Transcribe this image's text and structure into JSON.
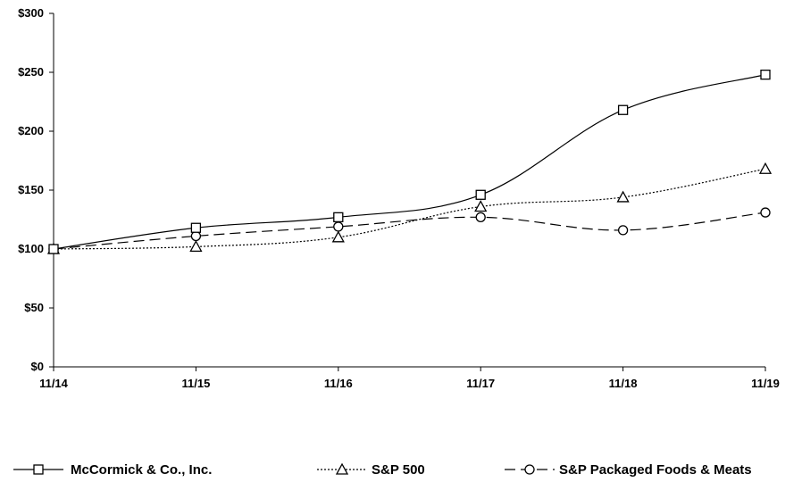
{
  "chart_data": {
    "type": "line",
    "title": "",
    "xlabel": "",
    "ylabel": "",
    "categories": [
      "11/14",
      "11/15",
      "11/16",
      "11/17",
      "11/18",
      "11/19"
    ],
    "y_tick_labels": [
      "$0",
      "$50",
      "$100",
      "$150",
      "$200",
      "$250",
      "$300"
    ],
    "y_ticks": [
      0,
      50,
      100,
      150,
      200,
      250,
      300
    ],
    "ylim": [
      0,
      300
    ],
    "grid": false,
    "legend_position": "bottom",
    "series": [
      {
        "name": "McCormick & Co., Inc.",
        "values": [
          100,
          118,
          127,
          146,
          218,
          248
        ],
        "marker": "square",
        "dash": "solid"
      },
      {
        "name": "S&P 500",
        "values": [
          100,
          102,
          110,
          136,
          144,
          168
        ],
        "marker": "triangle",
        "dash": "dotted"
      },
      {
        "name": "S&P Packaged Foods & Meats",
        "values": [
          100,
          111,
          119,
          127,
          116,
          131
        ],
        "marker": "circle",
        "dash": "dashed"
      }
    ]
  }
}
